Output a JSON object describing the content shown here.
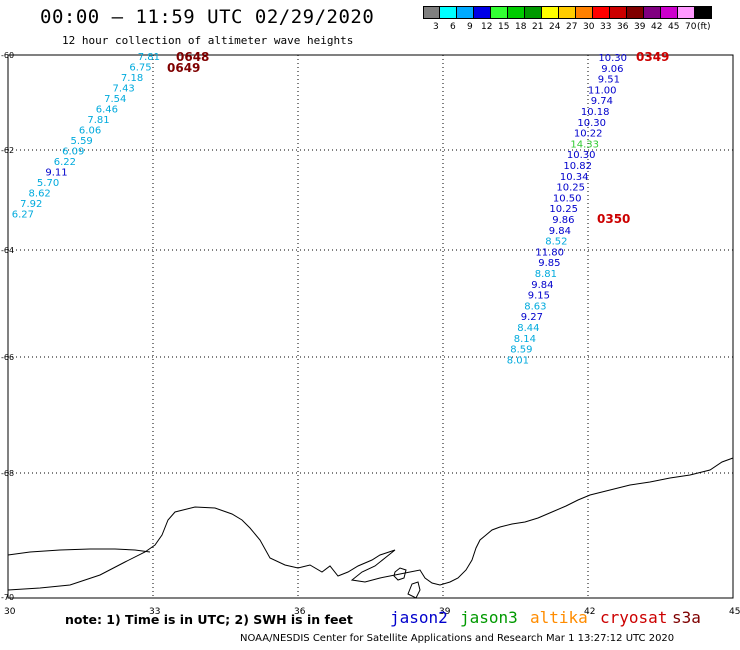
{
  "header": {
    "title": "00:00 – 11:59 UTC 02/29/2020",
    "subtitle": "12 hour collection of altimeter wave heights"
  },
  "colorbar": {
    "unit_label": "(ft)",
    "bins": [
      {
        "label": "3",
        "color": "#7f7f7f"
      },
      {
        "label": "6",
        "color": "#00ffff"
      },
      {
        "label": "9",
        "color": "#00aaff"
      },
      {
        "label": "12",
        "color": "#0000e6"
      },
      {
        "label": "15",
        "color": "#33ff33"
      },
      {
        "label": "18",
        "color": "#00cc00"
      },
      {
        "label": "21",
        "color": "#009900"
      },
      {
        "label": "24",
        "color": "#ffff00"
      },
      {
        "label": "27",
        "color": "#ffcc00"
      },
      {
        "label": "30",
        "color": "#ff8000"
      },
      {
        "label": "33",
        "color": "#ff0000"
      },
      {
        "label": "36",
        "color": "#cc0000"
      },
      {
        "label": "39",
        "color": "#800000"
      },
      {
        "label": "42",
        "color": "#800080"
      },
      {
        "label": "45",
        "color": "#cc00cc"
      },
      {
        "label": "70",
        "color": "#ff99ff"
      },
      {
        "label": "",
        "color": "#000000"
      }
    ]
  },
  "map": {
    "x_ticks": [
      "30",
      "33",
      "36",
      "39",
      "42",
      "45"
    ],
    "y_ticks": [
      "-60",
      "-62",
      "-64",
      "-66",
      "-68",
      "-70"
    ],
    "colors": {
      "jason2": "#0000cc",
      "jason3": "#009900",
      "altika": "#ff8c00",
      "cryosat": "#cc0000",
      "s3a": "#7f0000",
      "cyan": "#00aadd",
      "green": "#33cc33"
    },
    "tracks": [
      {
        "name": "west-track",
        "times": [
          {
            "text": "0648",
            "color": "#7f0000"
          },
          {
            "text": "0649",
            "color": "#7f0000"
          }
        ],
        "points": [
          {
            "v": "7.81",
            "c": "#00aadd"
          },
          {
            "v": "6.75",
            "c": "#00aadd"
          },
          {
            "v": "7.18",
            "c": "#00aadd"
          },
          {
            "v": "7.43",
            "c": "#00aadd"
          },
          {
            "v": "7.54",
            "c": "#00aadd"
          },
          {
            "v": "6.46",
            "c": "#00aadd"
          },
          {
            "v": "7.81",
            "c": "#00aadd"
          },
          {
            "v": "6.06",
            "c": "#00aadd"
          },
          {
            "v": "5.59",
            "c": "#00aadd"
          },
          {
            "v": "6.09",
            "c": "#00aadd"
          },
          {
            "v": "6.22",
            "c": "#00aadd"
          },
          {
            "v": "9.11",
            "c": "#0000cc"
          },
          {
            "v": "5.70",
            "c": "#00aadd"
          },
          {
            "v": "8.62",
            "c": "#00aadd"
          },
          {
            "v": "7.92",
            "c": "#00aadd"
          },
          {
            "v": "6.27",
            "c": "#00aadd"
          }
        ]
      },
      {
        "name": "east-track",
        "times": [
          {
            "text": "0349",
            "color": "#cc0000"
          },
          {
            "text": "0350",
            "color": "#cc0000"
          }
        ],
        "points": [
          {
            "v": "10.30",
            "c": "#0000cc"
          },
          {
            "v": "9.06",
            "c": "#0000cc"
          },
          {
            "v": "9.51",
            "c": "#0000cc"
          },
          {
            "v": "11.00",
            "c": "#0000cc"
          },
          {
            "v": "9.74",
            "c": "#0000cc"
          },
          {
            "v": "10.18",
            "c": "#0000cc"
          },
          {
            "v": "10.30",
            "c": "#0000cc"
          },
          {
            "v": "10.22",
            "c": "#0000cc"
          },
          {
            "v": "14.33",
            "c": "#33cc33"
          },
          {
            "v": "10.30",
            "c": "#0000cc"
          },
          {
            "v": "10.82",
            "c": "#0000cc"
          },
          {
            "v": "10.34",
            "c": "#0000cc"
          },
          {
            "v": "10.25",
            "c": "#0000cc"
          },
          {
            "v": "10.50",
            "c": "#0000cc"
          },
          {
            "v": "10.25",
            "c": "#0000cc"
          },
          {
            "v": "9.86",
            "c": "#0000cc"
          },
          {
            "v": "9.84",
            "c": "#0000cc"
          },
          {
            "v": "8.52",
            "c": "#00aadd"
          },
          {
            "v": "11.80",
            "c": "#0000cc"
          },
          {
            "v": "9.85",
            "c": "#0000cc"
          },
          {
            "v": "8.81",
            "c": "#00aadd"
          },
          {
            "v": "9.84",
            "c": "#0000cc"
          },
          {
            "v": "9.15",
            "c": "#0000cc"
          },
          {
            "v": "8.63",
            "c": "#00aadd"
          },
          {
            "v": "9.27",
            "c": "#0000cc"
          },
          {
            "v": "8.44",
            "c": "#00aadd"
          },
          {
            "v": "8.14",
            "c": "#00aadd"
          },
          {
            "v": "8.59",
            "c": "#00aadd"
          },
          {
            "v": "8.01",
            "c": "#00aadd"
          }
        ]
      }
    ]
  },
  "legend": {
    "note": "note:  1) Time is in UTC;  2) SWH is in feet",
    "satellites": [
      {
        "label": "jason2",
        "color": "#0000cc"
      },
      {
        "label": "jason3",
        "color": "#009900"
      },
      {
        "label": "altika",
        "color": "#ff8c00"
      },
      {
        "label": "cryosat",
        "color": "#cc0000"
      },
      {
        "label": "s3a",
        "color": "#7f0000"
      }
    ]
  },
  "credit": "NOAA/NESDIS Center for Satellite Applications and Research    Mar  1 13:27:12 UTC 2020"
}
